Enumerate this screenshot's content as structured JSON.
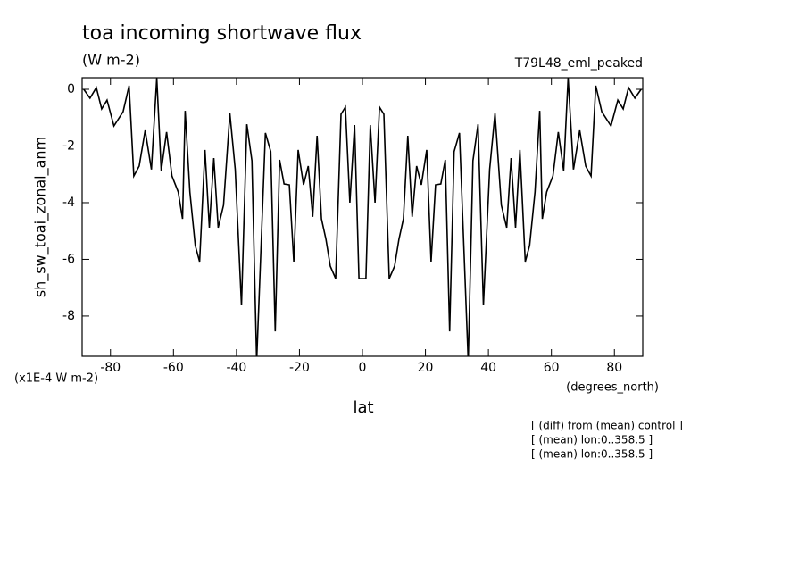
{
  "chart_data": {
    "type": "line",
    "title": "toa incoming shortwave flux",
    "units": "(W m-2)",
    "experiment": "T79L48_eml_peaked",
    "y_label": "sh_sw_toai_zonal_anm",
    "y_scale_label": "(x1E-4 W m-2)",
    "x_label": "lat",
    "x_units": "(degrees_north)",
    "notes": [
      "[ (diff) from (mean) control ]",
      "[ (mean) lon:0..358.5 ]",
      "[ (mean) lon:0..358.5 ]"
    ],
    "color": "#000000",
    "x": [
      -88.5,
      -86.5,
      -84.5,
      -82.8,
      -81.1,
      -78.9,
      -76.0,
      -74.1,
      -72.6,
      -70.9,
      -69.0,
      -67.0,
      -65.3,
      -63.9,
      -62.2,
      -60.5,
      -58.5,
      -57.1,
      -56.3,
      -54.8,
      -53.1,
      -51.7,
      -50.0,
      -48.6,
      -47.2,
      -45.8,
      -44.1,
      -42.1,
      -40.4,
      -38.4,
      -36.7,
      -35.1,
      -33.6,
      -30.8,
      -29.1,
      -27.7,
      -26.3,
      -24.9,
      -23.2,
      -21.8,
      -20.4,
      -18.7,
      -17.2,
      -15.8,
      -14.4,
      -13.0,
      -11.6,
      -10.2,
      -8.5,
      -6.8,
      -5.4,
      -4.0,
      -2.5,
      -1.1,
      1.1,
      2.5,
      4.0,
      5.4,
      6.8,
      8.5,
      10.2,
      11.6,
      13.0,
      14.4,
      15.8,
      17.2,
      18.7,
      20.4,
      21.8,
      23.2,
      24.9,
      26.3,
      27.7,
      29.1,
      30.8,
      33.6,
      35.1,
      36.7,
      38.4,
      40.4,
      42.1,
      44.1,
      45.8,
      47.2,
      48.6,
      50.0,
      51.7,
      53.1,
      54.8,
      56.3,
      57.1,
      58.5,
      60.5,
      62.2,
      63.9,
      65.3,
      67.0,
      69.0,
      70.9,
      72.6,
      74.1,
      76.0,
      78.9,
      81.1,
      82.8,
      84.5,
      86.5,
      88.5
    ],
    "values": [
      0,
      -0.31,
      0.06,
      -0.69,
      -0.38,
      -1.29,
      -0.79,
      0.13,
      -3.06,
      -2.71,
      -1.45,
      -2.83,
      0.4,
      -2.87,
      -1.51,
      -3.06,
      -3.62,
      -4.57,
      -0.76,
      -3.62,
      -5.51,
      -6.08,
      -2.14,
      -4.88,
      -2.43,
      -4.88,
      -4.09,
      -0.85,
      -2.83,
      -7.62,
      -1.23,
      -2.52,
      -9.6,
      -1.54,
      -2.2,
      -8.54,
      -2.49,
      -3.34,
      -3.37,
      -6.08,
      -2.14,
      -3.37,
      -2.71,
      -4.5,
      -1.64,
      -4.57,
      -5.29,
      -6.24,
      -6.68,
      -0.88,
      -0.63,
      -4.0,
      -1.26,
      -6.68,
      -6.68,
      -1.26,
      -4.0,
      -0.63,
      -0.88,
      -6.68,
      -6.24,
      -5.29,
      -4.57,
      -1.64,
      -4.5,
      -2.71,
      -3.37,
      -2.14,
      -6.08,
      -3.37,
      -3.34,
      -2.49,
      -8.54,
      -2.2,
      -1.54,
      -9.6,
      -2.52,
      -1.23,
      -7.62,
      -2.83,
      -0.85,
      -4.09,
      -4.88,
      -2.43,
      -4.88,
      -2.14,
      -6.08,
      -5.51,
      -3.62,
      -0.76,
      -4.57,
      -3.62,
      -3.06,
      -1.51,
      -2.87,
      0.4,
      -2.83,
      -1.45,
      -2.71,
      -3.06,
      0.13,
      -0.79,
      -1.29,
      -0.38,
      -0.69,
      0.06,
      -0.31,
      0
    ],
    "xlim": [
      -89,
      89
    ],
    "xticks": [
      -80,
      -60,
      -40,
      -20,
      0,
      20,
      40,
      60,
      80
    ],
    "ylim": [
      -9.42,
      0.41
    ],
    "yticks": [
      0,
      -2,
      -4,
      -6,
      -8
    ]
  }
}
